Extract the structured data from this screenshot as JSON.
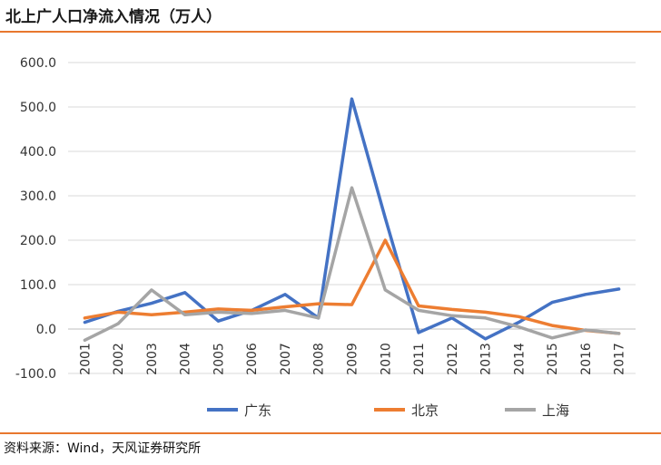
{
  "title": "北上广人口净流入情况（万人）",
  "source": "资料来源：Wind，天风证券研究所",
  "chart_data": {
    "type": "line",
    "x": [
      "2001",
      "2002",
      "2003",
      "2004",
      "2005",
      "2006",
      "2007",
      "2008",
      "2009",
      "2010",
      "2011",
      "2012",
      "2013",
      "2014",
      "2015",
      "2016",
      "2017"
    ],
    "ylim": [
      -100,
      600
    ],
    "yticks": [
      "-100.0",
      "0.0",
      "100.0",
      "200.0",
      "300.0",
      "400.0",
      "500.0",
      "600.0"
    ],
    "grid": true,
    "legend_position": "bottom",
    "series": [
      {
        "name": "广东",
        "color": "#4472c4",
        "values": [
          15,
          40,
          58,
          82,
          18,
          42,
          78,
          25,
          518,
          250,
          -8,
          25,
          -22,
          15,
          60,
          78,
          90
        ]
      },
      {
        "name": "北京",
        "color": "#ed7d31",
        "values": [
          25,
          38,
          32,
          38,
          45,
          42,
          50,
          57,
          55,
          200,
          52,
          44,
          38,
          28,
          8,
          -3,
          -10
        ]
      },
      {
        "name": "上海",
        "color": "#a5a5a5",
        "values": [
          -25,
          12,
          88,
          32,
          38,
          35,
          42,
          25,
          318,
          88,
          42,
          30,
          25,
          5,
          -20,
          -2,
          -10
        ]
      }
    ]
  }
}
